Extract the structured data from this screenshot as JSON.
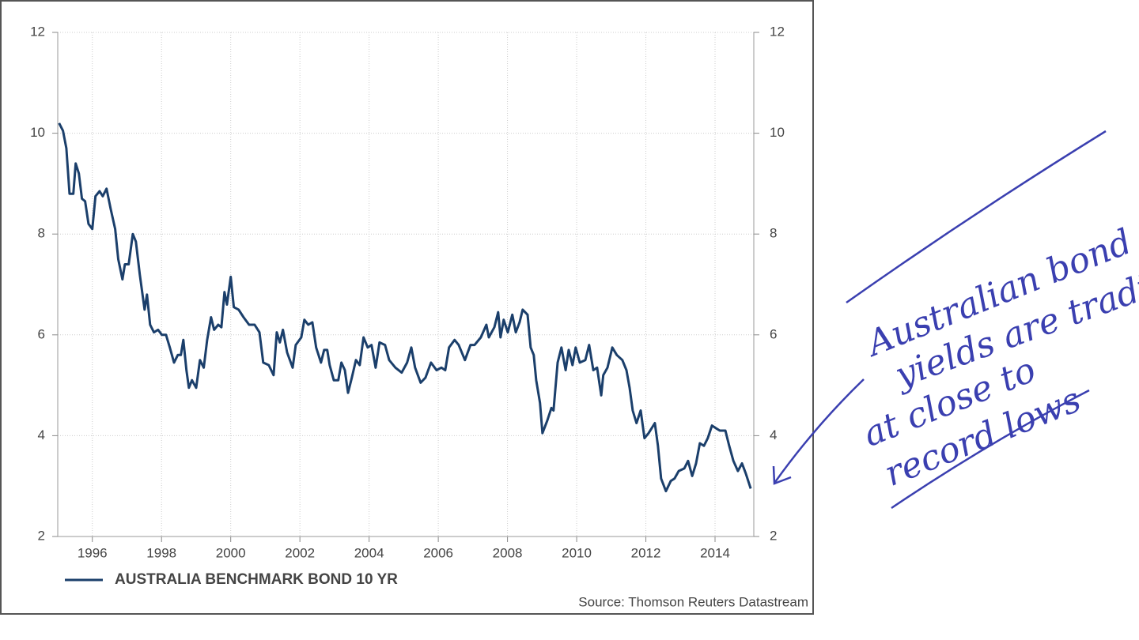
{
  "chart_data": {
    "type": "line",
    "series": [
      {
        "name": "AUSTRALIA BENCHMARK BOND 10 YR",
        "color": "#1b3f6b",
        "x": [
          1995.04,
          1995.15,
          1995.25,
          1995.34,
          1995.45,
          1995.52,
          1995.61,
          1995.7,
          1995.79,
          1995.89,
          1996.0,
          1996.09,
          1996.21,
          1996.3,
          1996.41,
          1996.53,
          1996.66,
          1996.75,
          1996.87,
          1996.94,
          1997.05,
          1997.17,
          1997.26,
          1997.37,
          1997.51,
          1997.58,
          1997.67,
          1997.78,
          1997.9,
          1998.01,
          1998.13,
          1998.24,
          1998.36,
          1998.47,
          1998.56,
          1998.63,
          1998.72,
          1998.79,
          1998.88,
          1999.0,
          1999.11,
          1999.22,
          1999.32,
          1999.43,
          1999.52,
          1999.64,
          1999.73,
          1999.82,
          1999.89,
          2000.0,
          2000.09,
          2000.23,
          2000.37,
          2000.53,
          2000.69,
          2000.83,
          2000.94,
          2001.1,
          2001.24,
          2001.33,
          2001.42,
          2001.51,
          2001.63,
          2001.79,
          2001.88,
          2002.04,
          2002.13,
          2002.24,
          2002.36,
          2002.47,
          2002.61,
          2002.7,
          2002.79,
          2002.86,
          2002.98,
          2003.11,
          2003.2,
          2003.3,
          2003.39,
          2003.5,
          2003.62,
          2003.73,
          2003.84,
          2003.96,
          2004.07,
          2004.19,
          2004.3,
          2004.46,
          2004.58,
          2004.76,
          2004.94,
          2005.1,
          2005.22,
          2005.33,
          2005.49,
          2005.63,
          2005.79,
          2005.95,
          2006.09,
          2006.2,
          2006.31,
          2006.47,
          2006.59,
          2006.77,
          2006.93,
          2007.05,
          2007.23,
          2007.39,
          2007.46,
          2007.62,
          2007.73,
          2007.8,
          2007.89,
          2008.01,
          2008.14,
          2008.24,
          2008.35,
          2008.44,
          2008.58,
          2008.67,
          2008.76,
          2008.83,
          2008.94,
          2009.01,
          2009.15,
          2009.27,
          2009.33,
          2009.45,
          2009.56,
          2009.68,
          2009.77,
          2009.88,
          2009.97,
          2010.09,
          2010.25,
          2010.36,
          2010.48,
          2010.59,
          2010.71,
          2010.77,
          2010.89,
          2011.03,
          2011.16,
          2011.32,
          2011.44,
          2011.53,
          2011.62,
          2011.73,
          2011.85,
          2011.96,
          2012.08,
          2012.26,
          2012.35,
          2012.44,
          2012.58,
          2012.72,
          2012.83,
          2012.95,
          2013.11,
          2013.22,
          2013.34,
          2013.45,
          2013.56,
          2013.68,
          2013.79,
          2013.91,
          2014.02,
          2014.14,
          2014.3,
          2014.41,
          2014.53,
          2014.66,
          2014.78,
          2014.89,
          2015.03
        ],
        "values": [
          10.2,
          10.05,
          9.7,
          8.8,
          8.8,
          9.4,
          9.2,
          8.7,
          8.65,
          8.2,
          8.1,
          8.75,
          8.85,
          8.75,
          8.9,
          8.5,
          8.1,
          7.5,
          7.1,
          7.4,
          7.4,
          8.0,
          7.85,
          7.2,
          6.5,
          6.8,
          6.2,
          6.05,
          6.1,
          6.0,
          6.0,
          5.75,
          5.45,
          5.6,
          5.6,
          5.9,
          5.3,
          4.95,
          5.1,
          4.95,
          5.5,
          5.35,
          5.9,
          6.35,
          6.1,
          6.2,
          6.15,
          6.85,
          6.6,
          7.15,
          6.55,
          6.5,
          6.35,
          6.2,
          6.2,
          6.05,
          5.45,
          5.4,
          5.2,
          6.05,
          5.85,
          6.1,
          5.65,
          5.35,
          5.8,
          5.95,
          6.3,
          6.2,
          6.25,
          5.75,
          5.45,
          5.7,
          5.7,
          5.4,
          5.1,
          5.1,
          5.45,
          5.3,
          4.85,
          5.15,
          5.5,
          5.4,
          5.95,
          5.75,
          5.8,
          5.35,
          5.85,
          5.8,
          5.5,
          5.35,
          5.25,
          5.45,
          5.75,
          5.35,
          5.05,
          5.15,
          5.45,
          5.3,
          5.35,
          5.3,
          5.75,
          5.9,
          5.8,
          5.5,
          5.8,
          5.8,
          5.95,
          6.2,
          5.95,
          6.15,
          6.45,
          5.95,
          6.3,
          6.05,
          6.4,
          6.05,
          6.25,
          6.5,
          6.4,
          5.75,
          5.6,
          5.1,
          4.65,
          4.05,
          4.3,
          4.55,
          4.5,
          5.45,
          5.75,
          5.3,
          5.7,
          5.4,
          5.75,
          5.45,
          5.5,
          5.8,
          5.3,
          5.35,
          4.8,
          5.2,
          5.35,
          5.75,
          5.6,
          5.5,
          5.3,
          4.95,
          4.5,
          4.25,
          4.5,
          3.95,
          4.05,
          4.25,
          3.8,
          3.15,
          2.9,
          3.1,
          3.15,
          3.3,
          3.35,
          3.5,
          3.2,
          3.45,
          3.85,
          3.8,
          3.95,
          4.2,
          4.15,
          4.1,
          4.1,
          3.8,
          3.5,
          3.3,
          3.45,
          3.25,
          2.95
        ]
      }
    ],
    "xlim": [
      1995,
      2015.12
    ],
    "xticks": [
      1996,
      1998,
      2000,
      2002,
      2004,
      2006,
      2008,
      2010,
      2012,
      2014
    ],
    "ylim": [
      2,
      12
    ],
    "yticks": [
      2,
      4,
      6,
      8,
      10,
      12
    ],
    "y2lim": [
      2,
      12
    ],
    "y2ticks": [
      2,
      4,
      6,
      8,
      10,
      12
    ],
    "grid": true,
    "legend": "bottom-left",
    "source": "Source: Thomson Reuters Datastream",
    "annotation": [
      "Australian bond",
      "yields are trading",
      "at close to",
      "record lows"
    ]
  }
}
